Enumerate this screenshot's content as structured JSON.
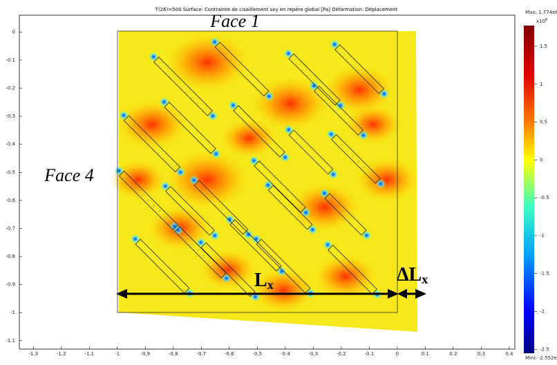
{
  "chart_data": {
    "type": "surface",
    "title": "T(26)=500    Surface: Contrainte de cisaillement sxy en repère global [Pa]    Déformation: Déplacement",
    "xlim": [
      -1.35,
      0.42
    ],
    "xticks": [
      -1.3,
      -1.2,
      -1.1,
      -1,
      -0.9,
      -0.8,
      -0.7,
      -0.6,
      -0.5,
      -0.4,
      -0.3,
      -0.2,
      -0.1,
      0,
      0.1,
      0.2,
      0.3,
      0.4
    ],
    "ylim": [
      -1.13,
      0.06
    ],
    "yticks": [
      0,
      -0.1,
      -0.2,
      -0.3,
      -0.4,
      -0.5,
      -0.6,
      -0.7,
      -0.8,
      -0.9,
      -1,
      -1.1
    ],
    "colorbar": {
      "lim": [
        -2.552,
        1.774
      ],
      "ticks": [
        1.5,
        1,
        0.5,
        0,
        -0.5,
        -1,
        -1.5,
        -2,
        -2.5
      ],
      "multiplier": "x10",
      "exponent": "8",
      "max_label": "Max: 1.774e8",
      "min_label": "Mini: -2.552e8"
    },
    "annotations": {
      "face_top": "Face 1",
      "face_left": "Face 4",
      "length": "L",
      "length_sub": "x",
      "delta": "ΔL",
      "delta_sub": "x"
    }
  }
}
